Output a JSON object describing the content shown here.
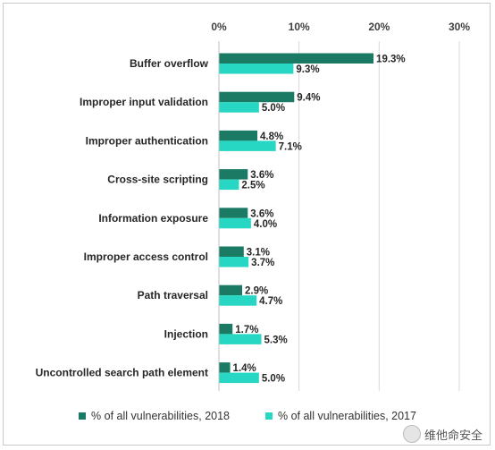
{
  "chart_data": {
    "type": "bar",
    "orientation": "horizontal",
    "categories": [
      "Buffer overflow",
      "Improper input validation",
      "Improper authentication",
      "Cross-site scripting",
      "Information exposure",
      "Improper access control",
      "Path traversal",
      "Injection",
      "Uncontrolled search path element"
    ],
    "series": [
      {
        "name": "% of all vulnerabilities, 2018",
        "color": "#1a7a63",
        "values": [
          19.3,
          9.4,
          4.8,
          3.6,
          3.6,
          3.1,
          2.9,
          1.7,
          1.4
        ],
        "labels": [
          "19.3%",
          "9.4%",
          "4.8%",
          "3.6%",
          "3.6%",
          "3.1%",
          "2.9%",
          "1.7%",
          "1.4%"
        ]
      },
      {
        "name": "% of all vulnerabilities, 2017",
        "color": "#27d6c3",
        "values": [
          9.3,
          5.0,
          7.1,
          2.5,
          4.0,
          3.7,
          4.7,
          5.3,
          5.0
        ],
        "labels": [
          "9.3%",
          "5.0%",
          "7.1%",
          "2.5%",
          "4.0%",
          "3.7%",
          "4.7%",
          "5.3%",
          "5.0%"
        ]
      }
    ],
    "xlim": [
      0,
      30
    ],
    "xticks": [
      "0%",
      "10%",
      "20%",
      "30%"
    ],
    "xtick_values": [
      0,
      10,
      20,
      30
    ],
    "grid": true,
    "axis_position": "top",
    "legend_position": "bottom"
  },
  "watermark": {
    "text": "维他命安全"
  }
}
